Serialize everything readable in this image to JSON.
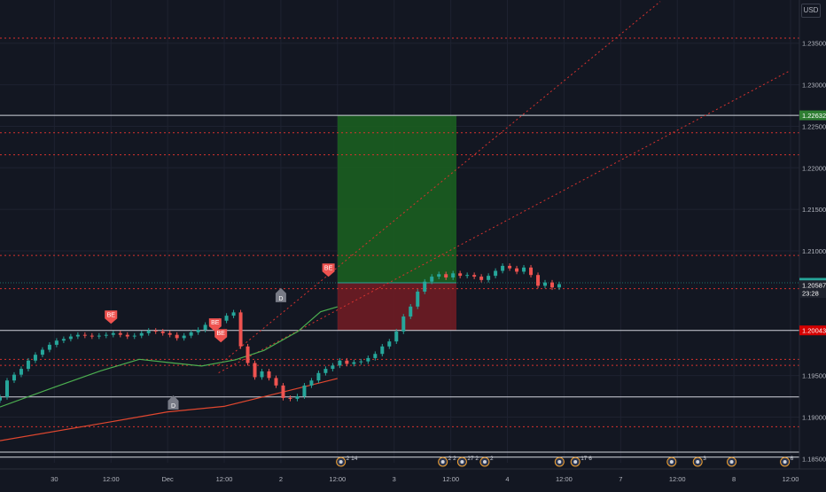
{
  "currency": "USD",
  "colors": {
    "background": "#131722",
    "grid": "#1e2230",
    "text": "#b2b5be",
    "red_dotted": "#d8322e",
    "white_line": "#d1d4dc",
    "candle_up": "#26a69a",
    "candle_down": "#ef5350",
    "ma_fast": "#4caf50",
    "ma_slow": "#e0472f",
    "profit_zone": "#1b5e20",
    "loss_zone": "#6f1c24",
    "price_label_green": "#2e7d32",
    "price_label_teal": "#26a69a",
    "price_label_red": "#d50000",
    "signal_be": "#ef5350",
    "signal_d": "#787b86"
  },
  "chart_data": {
    "type": "candlestick",
    "symbol_quote": "USD",
    "y_ticks": [
      "1.23500",
      "1.23000",
      "1.22500",
      "1.22000",
      "1.21500",
      "1.21000",
      "1.19500",
      "1.19000",
      "1.18500"
    ],
    "ylim": [
      1.1845,
      1.2402
    ],
    "x_ticks": [
      "30",
      "12:00",
      "Dec",
      "12:00",
      "2",
      "12:00",
      "3",
      "12:00",
      "4",
      "12:00",
      "7",
      "12:00",
      "8",
      "12:00"
    ],
    "x_tick_days": [
      0,
      0.5,
      1,
      1.5,
      2,
      2.5,
      3,
      3.5,
      4,
      4.5,
      5,
      5.5,
      6,
      6.5
    ],
    "xlim_days": [
      -0.48,
      6.5
    ],
    "price_labels": [
      {
        "value": "1.22632",
        "style": "green"
      },
      {
        "value": "1.20616",
        "style": "teal"
      },
      {
        "value": "23:28",
        "style": "dark"
      },
      {
        "value": "1.20587",
        "style": "dark"
      },
      {
        "value": "1.20043",
        "style": "red"
      }
    ],
    "price_label_levels": [
      1.22632,
      1.20616,
      1.20492,
      1.20587,
      1.20043
    ],
    "horizontal_levels_white": [
      1.22632,
      1.20043,
      1.19242,
      1.18578,
      1.18518
    ],
    "horizontal_levels_red_dotted": [
      1.23561,
      1.22422,
      1.22157,
      1.20946,
      1.20545,
      1.19695,
      1.19623,
      1.18884
    ],
    "trendlines_red_dotted": [
      {
        "start": [
          1.45,
          1.19623
        ],
        "end": [
          5.35,
          1.24002
        ]
      },
      {
        "start": [
          1.45,
          1.19533
        ],
        "end": [
          6.5,
          1.23173
        ]
      }
    ],
    "position": {
      "entry": 1.20616,
      "target": 1.22632,
      "stop": 1.20043,
      "start_day": 2.5,
      "end_day": 3.55
    },
    "candles_close": [
      1.1924,
      1.1944,
      1.1951,
      1.1958,
      1.1968,
      1.1975,
      1.1981,
      1.1987,
      1.1992,
      1.1994,
      1.1997,
      1.1999,
      1.1998,
      1.1997,
      1.1998,
      1.1999,
      1.2001,
      1.1999,
      1.1997,
      1.1998,
      1.2001,
      1.2004,
      1.2003,
      1.2001,
      1.1999,
      1.1995,
      1.1998,
      1.2002,
      1.2005,
      1.2011,
      1.2013,
      1.2016,
      1.2022,
      1.2026,
      1.1985,
      1.1965,
      1.1948,
      1.1955,
      1.1947,
      1.1938,
      1.1923,
      1.1922,
      1.1925,
      1.1938,
      1.1944,
      1.1953,
      1.1958,
      1.1962,
      1.1968,
      1.1964,
      1.1966,
      1.1967,
      1.1971,
      1.1976,
      1.1985,
      1.1991,
      1.2003,
      1.2021,
      1.2033,
      1.2051,
      1.2063,
      1.2069,
      1.2072,
      1.2068,
      1.2073,
      1.207,
      1.2071,
      1.2069,
      1.2065,
      1.207,
      1.2076,
      1.2082,
      1.2079,
      1.2075,
      1.208,
      1.2071,
      1.2058,
      1.2062,
      1.2056,
      1.206
    ],
    "candles_start_day": -0.48,
    "candles_step_day": 0.0625,
    "ma_fast": [
      [
        -0.48,
        1.19121
      ],
      [
        0.0,
        1.19359
      ],
      [
        0.4,
        1.19552
      ],
      [
        0.75,
        1.19695
      ],
      [
        1.05,
        1.1965
      ],
      [
        1.3,
        1.19614
      ],
      [
        1.6,
        1.1969
      ],
      [
        1.85,
        1.19802
      ],
      [
        2.15,
        1.2003
      ],
      [
        2.35,
        1.20267
      ],
      [
        2.5,
        1.20327
      ]
    ],
    "ma_slow": [
      [
        -0.48,
        1.18716
      ],
      [
        0.5,
        1.18943
      ],
      [
        1.0,
        1.19063
      ],
      [
        1.5,
        1.19129
      ],
      [
        2.0,
        1.19295
      ],
      [
        2.5,
        1.19465
      ]
    ],
    "signals": [
      {
        "label": "BE",
        "day": 0.5,
        "price": 1.20186,
        "dir": "down"
      },
      {
        "label": "BE",
        "day": 1.42,
        "price": 1.20092,
        "dir": "down"
      },
      {
        "label": "BE",
        "day": 1.47,
        "price": 1.19963,
        "dir": "down"
      },
      {
        "label": "BE",
        "day": 2.42,
        "price": 1.20752,
        "dir": "down"
      },
      {
        "label": "D",
        "day": 1.05,
        "price": 1.19218,
        "dir": "up"
      },
      {
        "label": "D",
        "day": 2.0,
        "price": 1.20511,
        "dir": "up"
      }
    ],
    "event_markers": [
      {
        "day": 2.53,
        "text": "2 14"
      },
      {
        "day": 3.43,
        "text": "2 2"
      },
      {
        "day": 3.6,
        "text": "27 2"
      },
      {
        "day": 3.8,
        "text": "2"
      },
      {
        "day": 4.46,
        "text": ""
      },
      {
        "day": 4.6,
        "text": "17 6"
      },
      {
        "day": 5.45,
        "text": ""
      },
      {
        "day": 5.68,
        "text": "3"
      },
      {
        "day": 5.98,
        "text": ""
      },
      {
        "day": 6.45,
        "text": "6"
      }
    ]
  }
}
